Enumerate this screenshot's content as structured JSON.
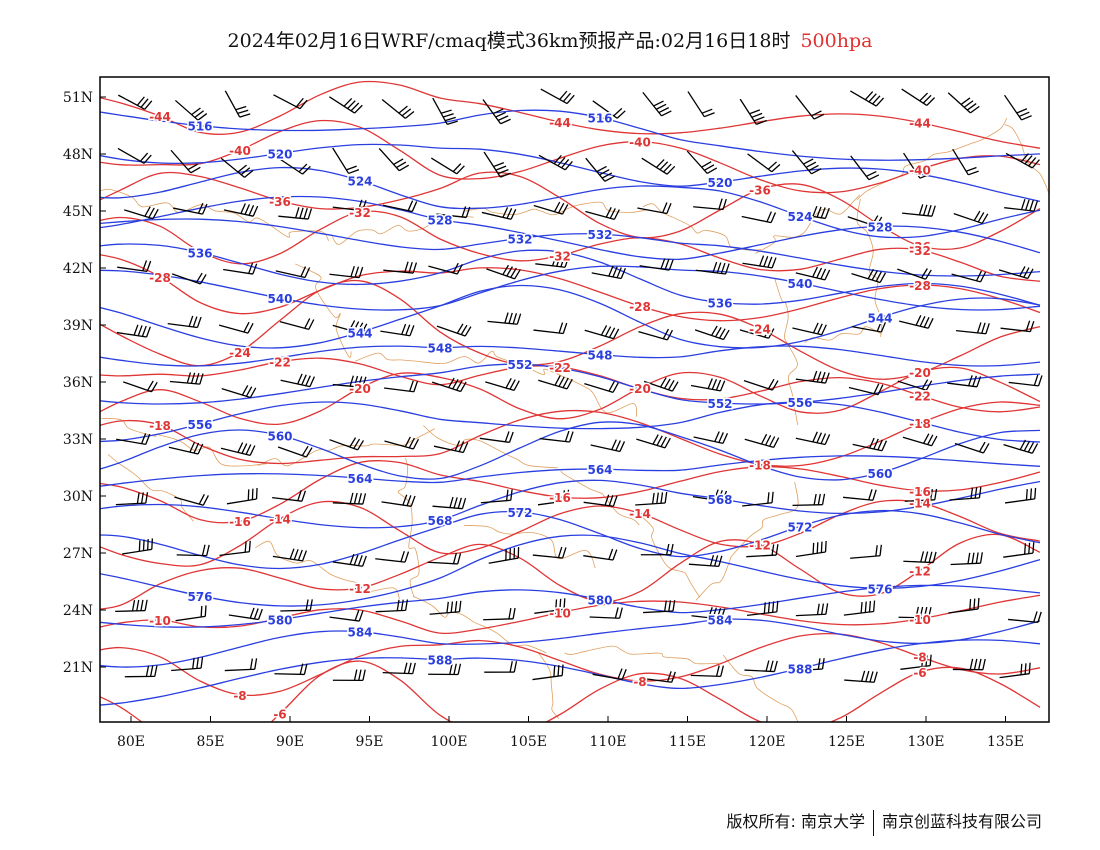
{
  "title": {
    "main": "2024年02月16日WRF/cmaq模式36km预报产品:02月16日18时",
    "level": "500hpa"
  },
  "axes": {
    "lon_labels": [
      "80E",
      "85E",
      "90E",
      "95E",
      "100E",
      "105E",
      "110E",
      "115E",
      "120E",
      "125E",
      "130E",
      "135E"
    ],
    "lat_labels": [
      "51N",
      "48N",
      "45N",
      "42N",
      "39N",
      "36N",
      "33N",
      "30N",
      "27N",
      "24N",
      "21N"
    ]
  },
  "colors": {
    "height": "#2a3fe0",
    "temperature": "#e03535",
    "border": "#e0a060",
    "barb": "#000000"
  },
  "height_contours": [
    {
      "value": 516,
      "label": "516"
    },
    {
      "value": 520,
      "label": "520"
    },
    {
      "value": 524,
      "label": "524"
    },
    {
      "value": 528,
      "label": "528"
    },
    {
      "value": 532,
      "label": "532"
    },
    {
      "value": 536,
      "label": "536"
    },
    {
      "value": 540,
      "label": "540"
    },
    {
      "value": 544,
      "label": "544"
    },
    {
      "value": 548,
      "label": "548"
    },
    {
      "value": 552,
      "label": "552"
    },
    {
      "value": 556,
      "label": "556"
    },
    {
      "value": 560,
      "label": "560"
    },
    {
      "value": 564,
      "label": "564"
    },
    {
      "value": 568,
      "label": "568"
    },
    {
      "value": 572,
      "label": "572"
    },
    {
      "value": 576,
      "label": "576"
    },
    {
      "value": 580,
      "label": "580"
    },
    {
      "value": 584,
      "label": "584"
    },
    {
      "value": 588,
      "label": "588"
    }
  ],
  "temp_contours": [
    {
      "value": -44,
      "label": "-44"
    },
    {
      "value": -40,
      "label": "-40"
    },
    {
      "value": -36,
      "label": "-36"
    },
    {
      "value": -32,
      "label": "-32"
    },
    {
      "value": -28,
      "label": "-28"
    },
    {
      "value": -24,
      "label": "-24"
    },
    {
      "value": -22,
      "label": "-22"
    },
    {
      "value": -20,
      "label": "-20"
    },
    {
      "value": -18,
      "label": "-18"
    },
    {
      "value": -16,
      "label": "-16"
    },
    {
      "value": -14,
      "label": "-14"
    },
    {
      "value": -12,
      "label": "-12"
    },
    {
      "value": -10,
      "label": "-10"
    },
    {
      "value": -8,
      "label": "-8"
    },
    {
      "value": -6,
      "label": "-6"
    }
  ],
  "footer": {
    "left": "版权所有: 南京大学",
    "right": "南京创蓝科技有限公司"
  }
}
